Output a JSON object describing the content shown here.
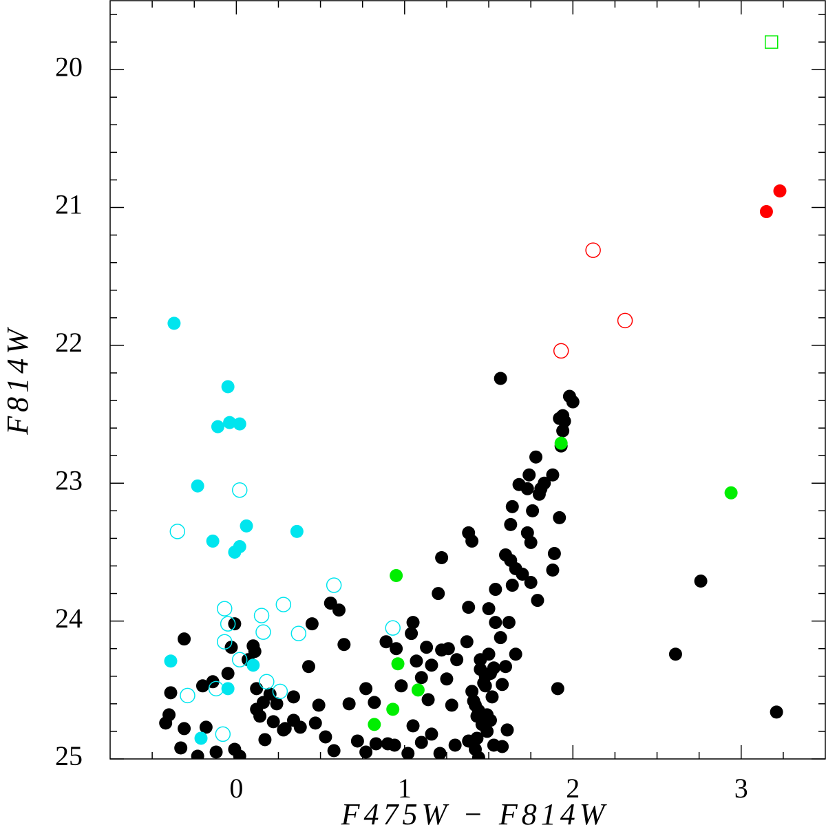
{
  "chart_data": {
    "type": "scatter",
    "xlabel": "F475W − F814W",
    "ylabel": "F814W",
    "xlim": [
      -0.75,
      3.5
    ],
    "ylim": [
      25,
      19.5
    ],
    "xticks": [
      0,
      1,
      2,
      3
    ],
    "yticks": [
      20,
      21,
      22,
      23,
      24,
      25
    ],
    "xminorticks": [
      -0.5,
      -0.25,
      0.25,
      0.5,
      0.75,
      1.25,
      1.5,
      1.75,
      2.25,
      2.5,
      2.75,
      3.25
    ],
    "yminorticks": [
      19.6,
      19.8,
      20.2,
      20.4,
      20.6,
      20.8,
      21.2,
      21.4,
      21.6,
      21.8,
      22.2,
      22.4,
      22.6,
      22.8,
      23.2,
      23.4,
      23.6,
      23.8,
      24.2,
      24.4,
      24.6,
      24.8
    ],
    "series": [
      {
        "color": "#000000",
        "marker": "filled-circle",
        "x": [
          1.57,
          1.98,
          2.0,
          1.92,
          1.94,
          1.95,
          1.94,
          1.93,
          1.78,
          1.74,
          1.88,
          1.68,
          1.83,
          1.73,
          1.8,
          1.81,
          1.76,
          1.64,
          1.92,
          1.63,
          1.73,
          1.75,
          1.38,
          1.4,
          1.22,
          1.6,
          1.63,
          1.66,
          1.7,
          1.64,
          1.75,
          1.54,
          1.79,
          1.89,
          1.88,
          2.76,
          1.2,
          1.38,
          1.5,
          1.54,
          1.62,
          1.57,
          1.5,
          1.53,
          1.48,
          1.48,
          1.58,
          1.6,
          1.66,
          1.05,
          1.04,
          1.13,
          1.22,
          1.26,
          1.37,
          1.31,
          1.07,
          1.1,
          1.16,
          1.25,
          0.89,
          0.95,
          0.98,
          1.14,
          1.28,
          1.4,
          1.42,
          1.43,
          1.51,
          1.61,
          1.49,
          1.38,
          1.53,
          1.1,
          1.16,
          1.05,
          1.21,
          1.02,
          0.94,
          0.83,
          0.72,
          0.77,
          0.82,
          0.67,
          0.64,
          0.61,
          0.56,
          0.45,
          0.43,
          0.49,
          0.47,
          0.38,
          0.53,
          0.58,
          0.28,
          0.22,
          0.17,
          0.14,
          0.12,
          0.16,
          0.12,
          0.2,
          0.24,
          0.34,
          0.29,
          0.34,
          0.11,
          0.1,
          0.07,
          -0.03,
          -0.01,
          -0.05,
          -0.14,
          -0.2,
          -0.31,
          -0.39,
          -0.4,
          -0.42,
          -0.31,
          -0.33,
          -0.18,
          -0.23,
          -0.12,
          -0.01,
          0.02,
          2.61,
          1.91,
          3.21,
          1.42,
          1.44,
          1.58,
          0.77,
          0.9,
          1.3,
          1.45,
          1.47,
          1.52,
          1.44,
          1.46,
          1.41,
          1.49,
          1.51,
          1.45,
          1.43
        ],
        "values": [
          22.24,
          22.37,
          22.41,
          22.53,
          22.51,
          22.55,
          22.62,
          22.73,
          22.81,
          22.94,
          22.94,
          23.01,
          23.0,
          23.04,
          23.08,
          23.04,
          23.2,
          23.17,
          23.25,
          23.3,
          23.36,
          23.43,
          23.36,
          23.42,
          23.54,
          23.52,
          23.56,
          23.62,
          23.66,
          23.74,
          23.72,
          23.77,
          23.85,
          23.51,
          23.63,
          23.71,
          23.8,
          23.9,
          23.91,
          24.01,
          24.01,
          24.12,
          24.24,
          24.34,
          24.4,
          24.47,
          24.46,
          24.33,
          24.24,
          24.01,
          24.09,
          24.19,
          24.21,
          24.2,
          24.15,
          24.28,
          24.29,
          24.41,
          24.32,
          24.42,
          24.15,
          24.2,
          24.47,
          24.57,
          24.61,
          24.51,
          24.61,
          24.69,
          24.72,
          24.79,
          24.8,
          24.87,
          24.9,
          24.88,
          24.82,
          24.76,
          24.96,
          24.96,
          24.9,
          24.89,
          24.87,
          24.49,
          24.59,
          24.6,
          24.17,
          23.92,
          23.87,
          24.02,
          24.33,
          24.61,
          24.74,
          24.77,
          24.84,
          24.94,
          24.79,
          24.73,
          24.86,
          24.69,
          24.64,
          24.59,
          24.49,
          24.53,
          24.6,
          24.55,
          24.78,
          24.72,
          24.22,
          24.18,
          24.28,
          24.19,
          24.02,
          24.38,
          24.44,
          24.47,
          24.13,
          24.52,
          24.68,
          24.74,
          24.78,
          24.92,
          24.77,
          24.98,
          24.95,
          24.93,
          24.98,
          24.24,
          24.49,
          24.66,
          24.93,
          24.99,
          24.91,
          24.95,
          24.89,
          24.9,
          24.35,
          24.45,
          24.55,
          24.65,
          24.75,
          24.58,
          24.68,
          24.38,
          24.28,
          24.85
        ]
      },
      {
        "color": "#00e5ee",
        "marker": "filled-circle",
        "x": [
          -0.37,
          -0.05,
          -0.11,
          -0.04,
          0.02,
          -0.23,
          0.06,
          -0.14,
          0.02,
          -0.01,
          0.36,
          -0.39,
          0.1,
          -0.05,
          -0.21
        ],
        "values": [
          21.84,
          22.3,
          22.59,
          22.56,
          22.57,
          23.02,
          23.31,
          23.42,
          23.46,
          23.5,
          23.35,
          24.29,
          24.32,
          24.49,
          24.85
        ]
      },
      {
        "color": "#00e5ee",
        "marker": "open-circle",
        "x": [
          -0.35,
          0.02,
          0.58,
          -0.07,
          0.15,
          0.28,
          -0.05,
          -0.07,
          0.16,
          0.37,
          0.93,
          -0.29,
          -0.12,
          0.18,
          0.26,
          -0.08,
          0.02
        ],
        "values": [
          23.35,
          23.05,
          23.74,
          23.91,
          23.96,
          23.88,
          24.02,
          24.15,
          24.08,
          24.09,
          24.05,
          24.54,
          24.49,
          24.44,
          24.51,
          24.82,
          24.28
        ]
      },
      {
        "color": "#00ee00",
        "marker": "filled-circle",
        "x": [
          1.93,
          2.94,
          0.95,
          0.96,
          1.08,
          0.93,
          0.82
        ],
        "values": [
          22.71,
          23.07,
          23.67,
          24.31,
          24.5,
          24.64,
          24.75
        ]
      },
      {
        "color": "#00ee00",
        "marker": "open-square",
        "x": [
          3.18
        ],
        "values": [
          19.8
        ]
      },
      {
        "color": "#ff0000",
        "marker": "filled-circle",
        "x": [
          3.23,
          3.15
        ],
        "values": [
          20.88,
          21.03
        ]
      },
      {
        "color": "#ff0000",
        "marker": "open-circle",
        "x": [
          2.12,
          2.31,
          1.93
        ],
        "values": [
          21.31,
          21.82,
          22.04
        ]
      }
    ]
  }
}
